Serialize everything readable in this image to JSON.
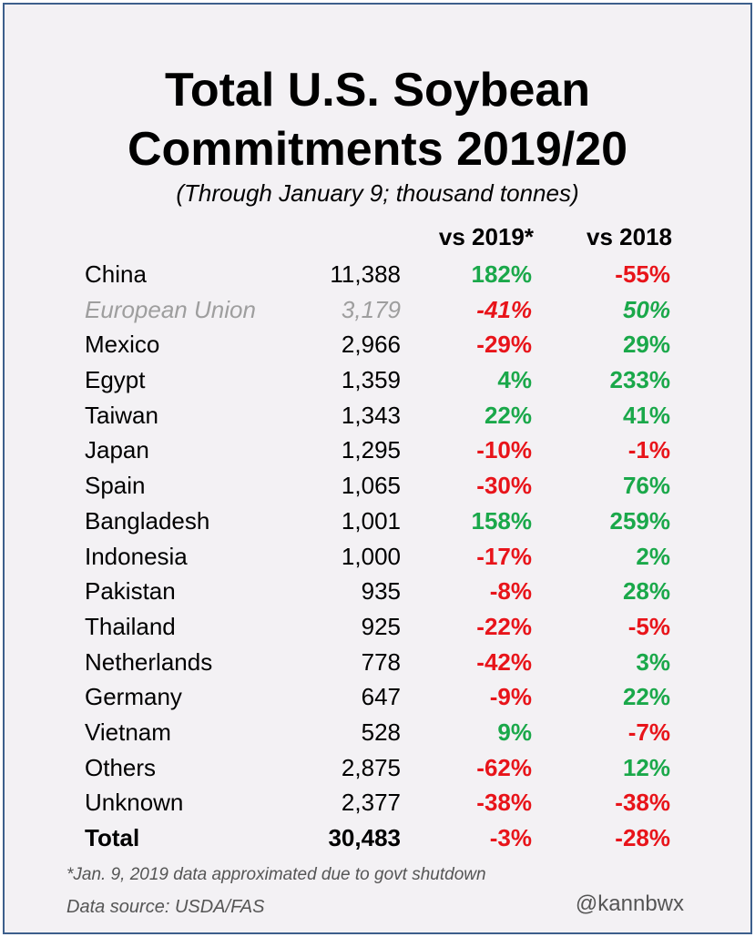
{
  "title_line1": "Total U.S. Soybean",
  "title_line2": "Commitments 2019/20",
  "subtitle": "(Through January 9; thousand tonnes)",
  "headers": {
    "col1": "vs 2019*",
    "col2": "vs 2018"
  },
  "rows": [
    {
      "name": "China",
      "value": "11,388",
      "vs2019": "182%",
      "vs2018": "-55%"
    },
    {
      "name": "European Union",
      "value": "3,179",
      "vs2019": "-41%",
      "vs2018": "50%",
      "muted": true
    },
    {
      "name": "Mexico",
      "value": "2,966",
      "vs2019": "-29%",
      "vs2018": "29%"
    },
    {
      "name": "Egypt",
      "value": "1,359",
      "vs2019": "4%",
      "vs2018": "233%"
    },
    {
      "name": "Taiwan",
      "value": "1,343",
      "vs2019": "22%",
      "vs2018": "41%"
    },
    {
      "name": "Japan",
      "value": "1,295",
      "vs2019": "-10%",
      "vs2018": "-1%"
    },
    {
      "name": "Spain",
      "value": "1,065",
      "vs2019": "-30%",
      "vs2018": "76%"
    },
    {
      "name": "Bangladesh",
      "value": "1,001",
      "vs2019": "158%",
      "vs2018": "259%"
    },
    {
      "name": "Indonesia",
      "value": "1,000",
      "vs2019": "-17%",
      "vs2018": "2%"
    },
    {
      "name": "Pakistan",
      "value": "935",
      "vs2019": "-8%",
      "vs2018": "28%"
    },
    {
      "name": "Thailand",
      "value": "925",
      "vs2019": "-22%",
      "vs2018": "-5%"
    },
    {
      "name": "Netherlands",
      "value": "778",
      "vs2019": "-42%",
      "vs2018": "3%"
    },
    {
      "name": "Germany",
      "value": "647",
      "vs2019": "-9%",
      "vs2018": "22%"
    },
    {
      "name": "Vietnam",
      "value": "528",
      "vs2019": "9%",
      "vs2018": "-7%"
    },
    {
      "name": "Others",
      "value": "2,875",
      "vs2019": "-62%",
      "vs2018": "12%"
    },
    {
      "name": "Unknown",
      "value": "2,377",
      "vs2019": "-38%",
      "vs2018": "-38%"
    },
    {
      "name": "Total",
      "value": "30,483",
      "vs2019": "-3%",
      "vs2018": "-28%",
      "total": true
    }
  ],
  "footnote": "*Jan. 9, 2019 data approximated due to govt shutdown",
  "source": "Data source: USDA/FAS",
  "handle": "@kannbwx",
  "colors": {
    "positive": "#1aa84a",
    "negative": "#e8141a",
    "muted": "#9e9e9e",
    "border": "#3d5f8c",
    "background": "#f3f1f4"
  }
}
